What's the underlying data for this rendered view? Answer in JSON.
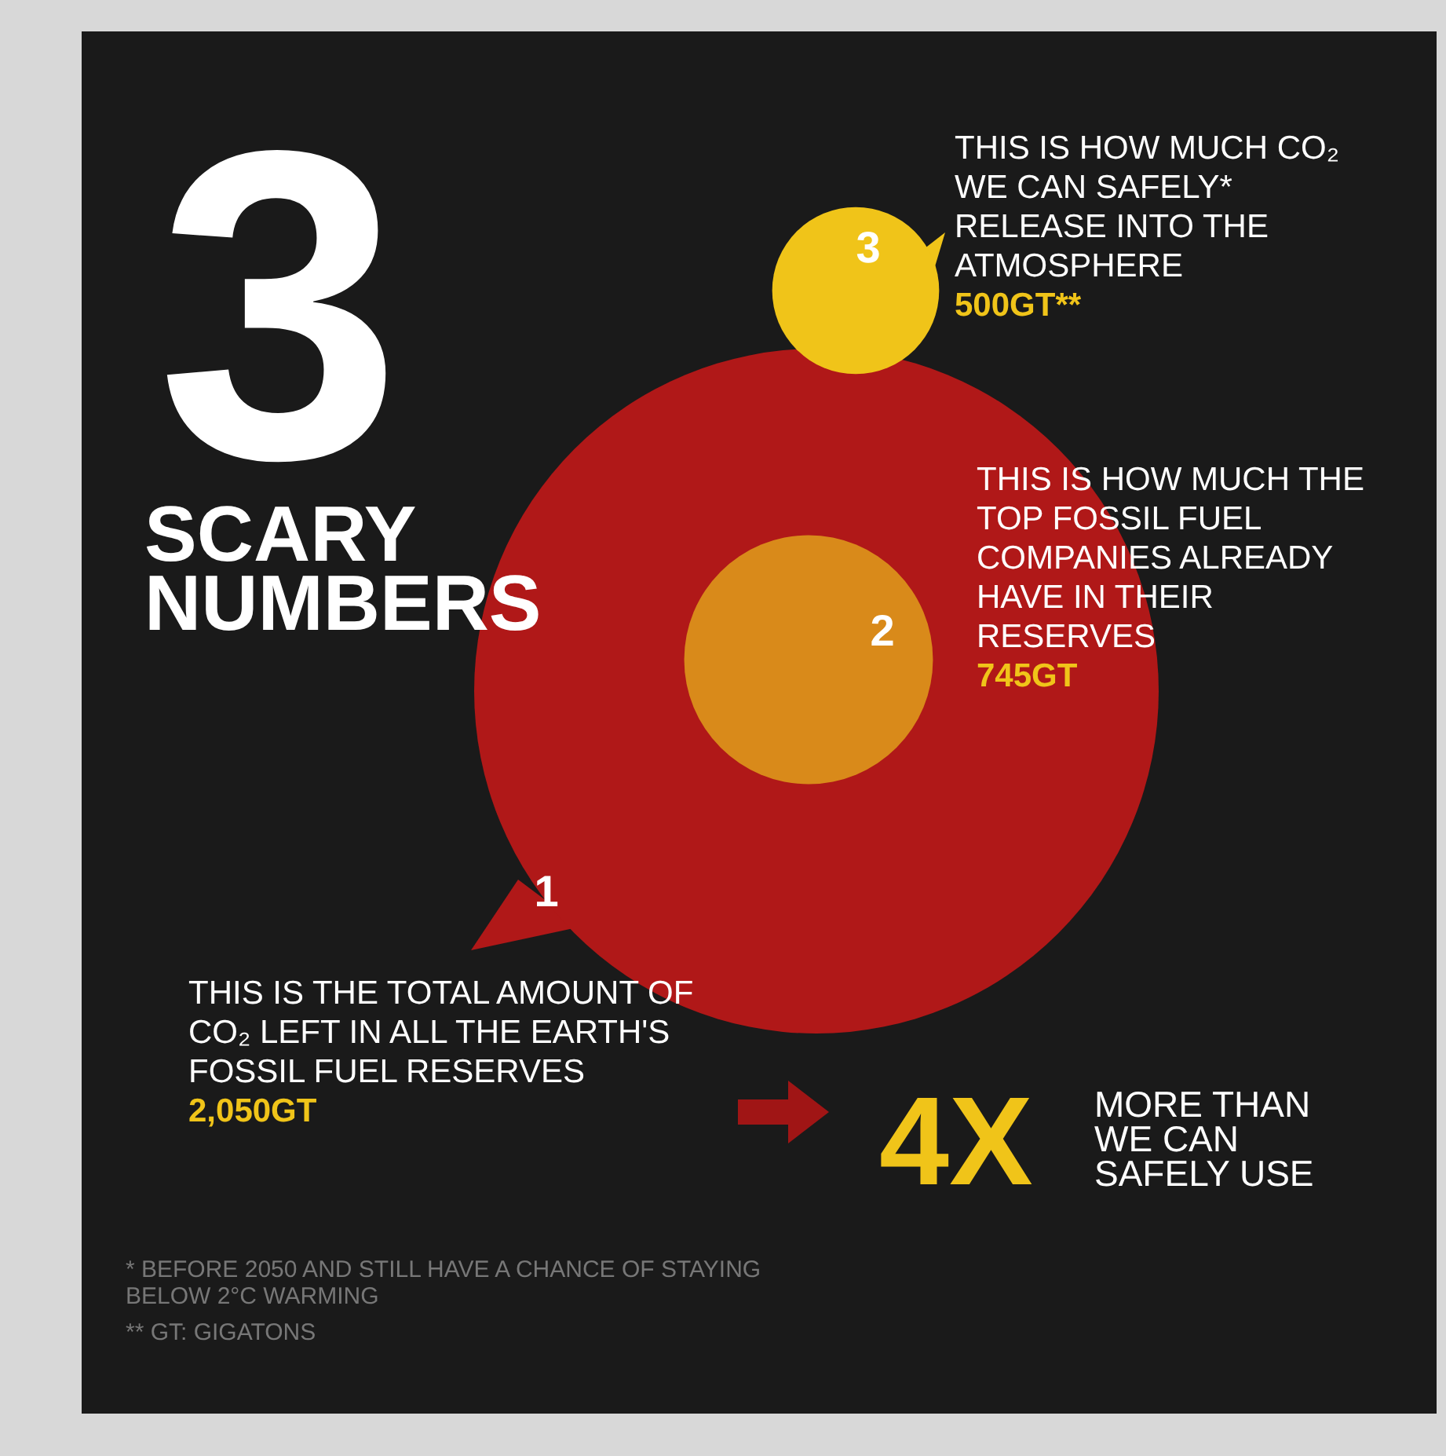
{
  "chart_data": {
    "type": "other",
    "title": "3",
    "subtitle": "SCARY NUMBERS",
    "categories": [
      "THIS IS THE TOTAL AMOUNT OF CO₂ LEFT IN ALL THE EARTH'S FOSSIL FUEL RESERVES",
      "THIS IS HOW MUCH THE TOP FOSSIL FUEL COMPANIES ALREADY HAVE IN THEIR RESERVES",
      "THIS IS HOW MUCH CO₂ WE CAN SAFELY* RELEASE INTO THE ATMOSPHERE"
    ],
    "values": [
      2050,
      745,
      500
    ],
    "value_labels": [
      "2,050GT",
      "745GT",
      "500GT**"
    ],
    "annotations": [
      "1",
      "2",
      "3",
      "4X",
      "MORE THAN WE CAN SAFELY USE",
      "* BEFORE 2050 AND STILL HAVE A CHANCE OF STAYING BELOW 2°C WARMING",
      "** GT: GIGATONS"
    ]
  }
}
